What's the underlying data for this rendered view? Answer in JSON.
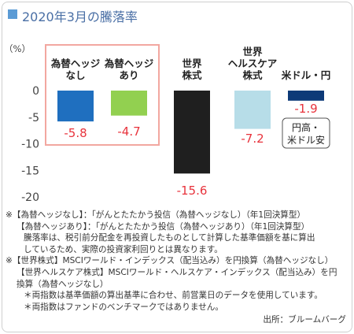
{
  "title": "2020年3月の騰落率",
  "colors": {
    "title": "#4a6fa5",
    "title_marker": "#5b9bd5",
    "value_label": "#e8333c",
    "highlight_box": "#f2a7a0",
    "axis_text": "#444444"
  },
  "chart_data": {
    "type": "bar",
    "unit_label": "（%）",
    "categories": [
      [
        "為替ヘッジ",
        "なし"
      ],
      [
        "為替ヘッジ",
        "あり"
      ],
      [
        "世界",
        "株式"
      ],
      [
        "世界",
        "ヘルスケア",
        "株式"
      ],
      [
        "米ドル・円"
      ]
    ],
    "values": [
      -5.8,
      -4.7,
      -15.6,
      -7.2,
      -1.9
    ],
    "value_labels": [
      "-5.8",
      "-4.7",
      "-15.6",
      "-7.2",
      "-1.9"
    ],
    "bar_colors": [
      "#1f6fbf",
      "#92d050",
      "#1f1f1f",
      "#b7dde8",
      "#0d3a78"
    ],
    "ylim": [
      -20,
      0
    ],
    "yticks": [
      0,
      -5,
      -10,
      -15,
      -20
    ],
    "ytick_labels": [
      "0",
      "-5",
      "-10",
      "-15",
      "-20"
    ],
    "annotation": [
      "円高・",
      "米ドル安"
    ],
    "highlight_group": [
      0,
      1
    ]
  },
  "notes": [
    "※【為替ヘッジなし】：「がんとたたかう投信（為替ヘッジなし）（年1回決算型）",
    "【為替ヘッジあり】：「がんとたたかう投信（為替ヘッジあり）（年1回決算型）",
    "騰落率は、税引前分配金を再投資したものとして計算した基準価額を基に算出",
    "しているため、実際の投資家利回りとは異なります。",
    "※【世界株式】MSCIワールド・インデックス（配当込み）を円換算（為替ヘッジなし）",
    "【世界ヘルスケア株式】MSCIワールド・ヘルスケア・インデックス（配当込み）を円",
    "換算（為替ヘッジなし）",
    "＊両指数は基準価額の算出基準に合わせ、前営業日のデータを使用しています。",
    "＊両指数はファンドのベンチマークではありません。"
  ],
  "source": "出所：ブルームバーグ"
}
